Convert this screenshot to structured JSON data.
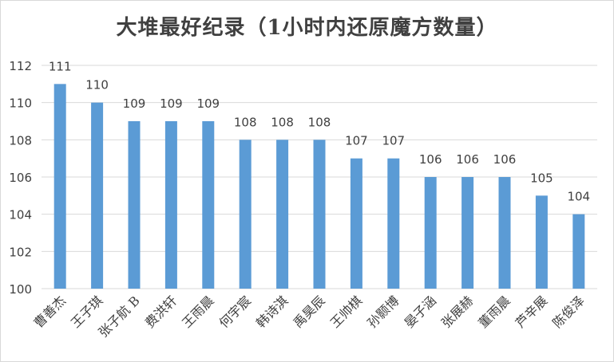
{
  "chart_data": {
    "type": "bar",
    "title": "大堆最好纪录（1小时内还原魔方数量）",
    "categories": [
      "曹善杰",
      "王子琪",
      "张子航 B",
      "费洪轩",
      "王雨晨",
      "何宇宸",
      "韩诗淇",
      "禹昊辰",
      "王帅棋",
      "孙颢博",
      "晏子涵",
      "张展赫",
      "董雨晨",
      "芦辛展",
      "陈俊泽"
    ],
    "values": [
      111,
      110,
      109,
      109,
      109,
      108,
      108,
      108,
      107,
      107,
      106,
      106,
      106,
      105,
      104
    ],
    "ylim": [
      100,
      112
    ],
    "yticks": [
      "100",
      "102",
      "104",
      "106",
      "108",
      "110",
      "112"
    ],
    "xlabel": "",
    "ylabel": "",
    "grid": true,
    "bar_color": "#5b9bd5",
    "grid_color": "#d9d9d9",
    "text_color": "#404040"
  }
}
